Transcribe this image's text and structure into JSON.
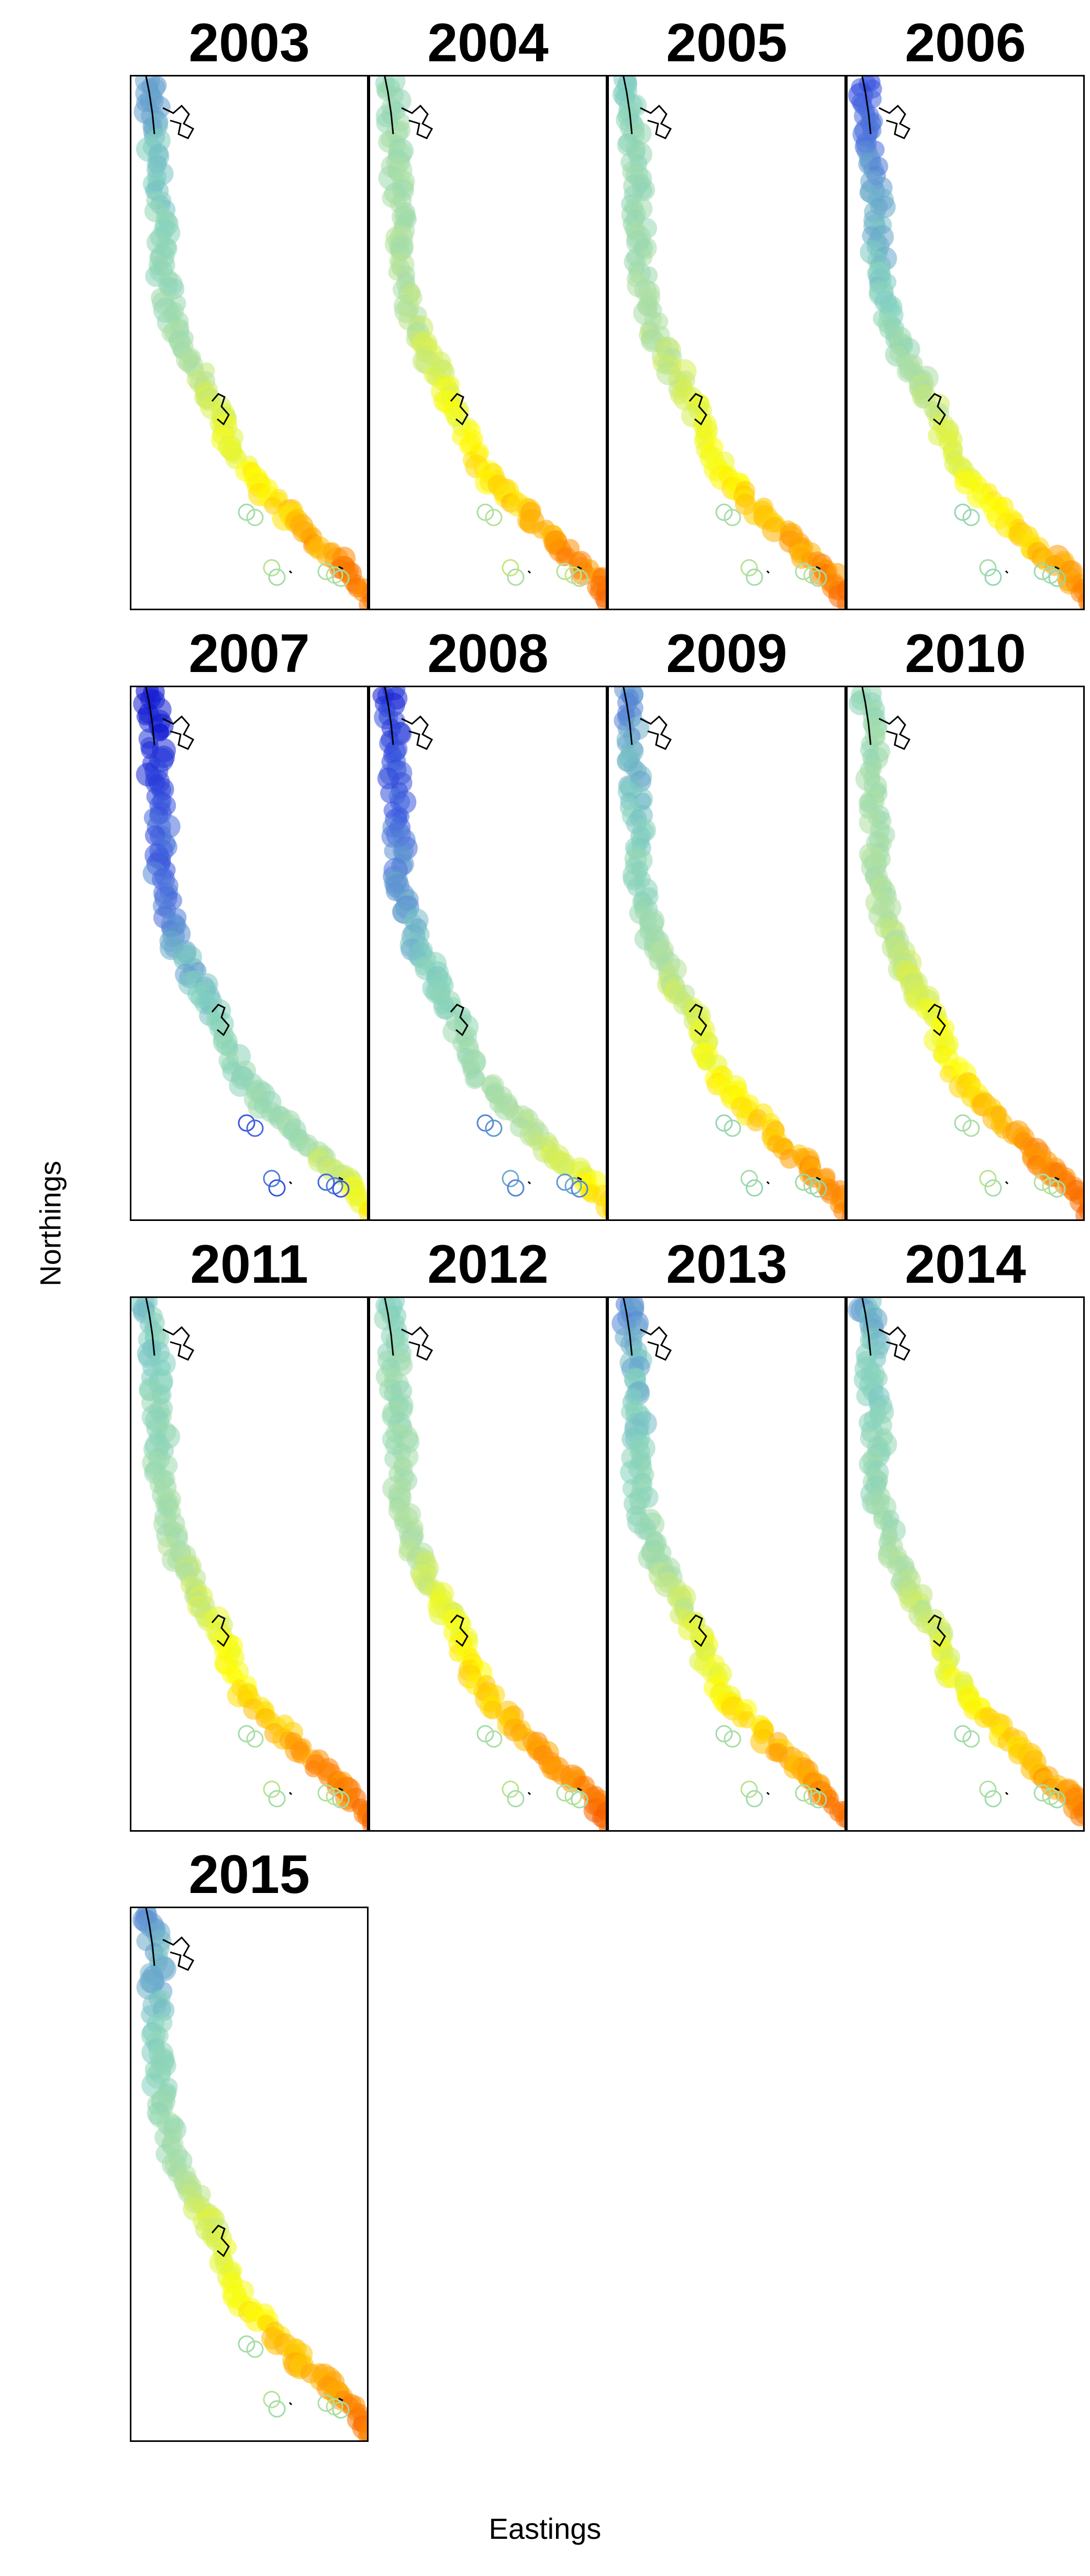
{
  "chart_data": {
    "type": "map",
    "xlabel": "Eastings",
    "ylabel": "Northings",
    "layout": {
      "columns": 4,
      "rows": 4
    },
    "color_scale": [
      "#0000cc",
      "#4060e0",
      "#80d0c0",
      "#b0e0a0",
      "#ffff00",
      "#ff8800",
      "#ee3300"
    ],
    "panels": [
      {
        "year": "2003",
        "north": 0.26,
        "mid": 0.52,
        "south": 0.84,
        "se": 0.88,
        "offshore": 0.45,
        "intensity": 0.88
      },
      {
        "year": "2004",
        "north": 0.4,
        "mid": 0.58,
        "south": 0.84,
        "se": 0.88,
        "offshore": 0.48,
        "intensity": 0.9
      },
      {
        "year": "2005",
        "north": 0.34,
        "mid": 0.56,
        "south": 0.84,
        "se": 0.88,
        "offshore": 0.45,
        "intensity": 0.88
      },
      {
        "year": "2006",
        "north": 0.14,
        "mid": 0.5,
        "south": 0.8,
        "se": 0.86,
        "offshore": 0.4,
        "intensity": 0.86
      },
      {
        "year": "2007",
        "north": 0.03,
        "mid": 0.36,
        "south": 0.62,
        "se": 0.7,
        "offshore": 0.15,
        "intensity": 0.7
      },
      {
        "year": "2008",
        "north": 0.08,
        "mid": 0.4,
        "south": 0.68,
        "se": 0.75,
        "offshore": 0.22,
        "intensity": 0.74
      },
      {
        "year": "2009",
        "north": 0.22,
        "mid": 0.54,
        "south": 0.84,
        "se": 0.88,
        "offshore": 0.4,
        "intensity": 0.88
      },
      {
        "year": "2010",
        "north": 0.4,
        "mid": 0.56,
        "south": 0.86,
        "se": 0.9,
        "offshore": 0.46,
        "intensity": 0.9
      },
      {
        "year": "2011",
        "north": 0.32,
        "mid": 0.55,
        "south": 0.86,
        "se": 0.9,
        "offshore": 0.46,
        "intensity": 0.9
      },
      {
        "year": "2012",
        "north": 0.36,
        "mid": 0.58,
        "south": 0.86,
        "se": 0.92,
        "offshore": 0.46,
        "intensity": 0.92
      },
      {
        "year": "2013",
        "north": 0.24,
        "mid": 0.54,
        "south": 0.84,
        "se": 0.88,
        "offshore": 0.45,
        "intensity": 0.88
      },
      {
        "year": "2014",
        "north": 0.28,
        "mid": 0.54,
        "south": 0.84,
        "se": 0.86,
        "offshore": 0.44,
        "intensity": 0.86
      },
      {
        "year": "2015",
        "north": 0.24,
        "mid": 0.56,
        "south": 0.84,
        "se": 0.88,
        "offshore": 0.45,
        "intensity": 0.88
      }
    ]
  }
}
